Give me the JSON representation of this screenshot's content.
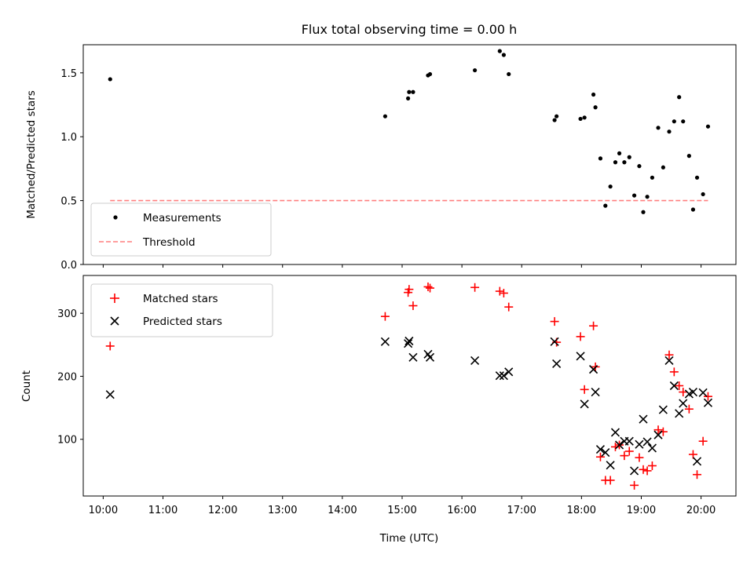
{
  "chart_data": [
    {
      "type": "scatter",
      "title": "Flux total observing time = 0.00 h",
      "xlabel": "",
      "ylabel": "Matched/Predicted stars",
      "ylim": [
        0,
        1.72
      ],
      "yticks": [
        0.0,
        0.5,
        1.0,
        1.5
      ],
      "ytick_labels": [
        "0.0",
        "0.5",
        "1.0",
        "1.5"
      ],
      "x_range_hours": [
        "09:40",
        "20:35"
      ],
      "legend": {
        "placement": "bottom-left",
        "entries": [
          "Measurements",
          "Threshold"
        ]
      },
      "colors": {
        "measurements": "#000000",
        "threshold": "#ff7f7f"
      },
      "series": [
        {
          "name": "Measurements",
          "marker": "dot",
          "points": [
            [
              "10:07",
              1.45
            ],
            [
              "14:43",
              1.16
            ],
            [
              "15:06",
              1.3
            ],
            [
              "15:07",
              1.35
            ],
            [
              "15:11",
              1.35
            ],
            [
              "15:26",
              1.48
            ],
            [
              "15:28",
              1.49
            ],
            [
              "16:13",
              1.52
            ],
            [
              "16:38",
              1.67
            ],
            [
              "16:42",
              1.64
            ],
            [
              "16:47",
              1.49
            ],
            [
              "17:33",
              1.13
            ],
            [
              "17:35",
              1.16
            ],
            [
              "17:59",
              1.14
            ],
            [
              "18:03",
              1.15
            ],
            [
              "18:12",
              1.33
            ],
            [
              "18:14",
              1.23
            ],
            [
              "18:19",
              0.83
            ],
            [
              "18:24",
              0.46
            ],
            [
              "18:29",
              0.61
            ],
            [
              "18:34",
              0.8
            ],
            [
              "18:38",
              0.87
            ],
            [
              "18:43",
              0.8
            ],
            [
              "18:48",
              0.84
            ],
            [
              "18:53",
              0.54
            ],
            [
              "18:58",
              0.77
            ],
            [
              "19:02",
              0.41
            ],
            [
              "19:06",
              0.53
            ],
            [
              "19:11",
              0.68
            ],
            [
              "19:17",
              1.07
            ],
            [
              "19:22",
              0.76
            ],
            [
              "19:28",
              1.04
            ],
            [
              "19:33",
              1.12
            ],
            [
              "19:38",
              1.31
            ],
            [
              "19:42",
              1.12
            ],
            [
              "19:48",
              0.85
            ],
            [
              "19:52",
              0.43
            ],
            [
              "19:56",
              0.68
            ],
            [
              "20:02",
              0.55
            ],
            [
              "20:07",
              1.08
            ]
          ]
        },
        {
          "name": "Threshold",
          "marker": "dashed-line",
          "points": [
            [
              "10:07",
              0.5
            ],
            [
              "20:07",
              0.5
            ]
          ]
        }
      ]
    },
    {
      "type": "scatter",
      "title": "",
      "xlabel": "Time (UTC)",
      "ylabel": "Count",
      "ylim": [
        10,
        360
      ],
      "yticks": [
        100,
        200,
        300
      ],
      "ytick_labels": [
        "100",
        "200",
        "300"
      ],
      "xticks": [
        "10:00",
        "11:00",
        "12:00",
        "13:00",
        "14:00",
        "15:00",
        "16:00",
        "17:00",
        "18:00",
        "19:00",
        "20:00"
      ],
      "x_range_hours": [
        "09:40",
        "20:35"
      ],
      "legend": {
        "placement": "top-left",
        "entries": [
          "Matched stars",
          "Predicted stars"
        ]
      },
      "colors": {
        "matched": "#ff0000",
        "predicted": "#000000"
      },
      "series": [
        {
          "name": "Matched stars",
          "marker": "plus",
          "points": [
            [
              "10:07",
              248
            ],
            [
              "14:43",
              295
            ],
            [
              "15:06",
              333
            ],
            [
              "15:07",
              338
            ],
            [
              "15:11",
              312
            ],
            [
              "15:26",
              342
            ],
            [
              "15:28",
              340
            ],
            [
              "16:13",
              341
            ],
            [
              "16:38",
              335
            ],
            [
              "16:42",
              332
            ],
            [
              "16:47",
              310
            ],
            [
              "17:33",
              287
            ],
            [
              "17:35",
              254
            ],
            [
              "17:59",
              263
            ],
            [
              "18:03",
              179
            ],
            [
              "18:12",
              280
            ],
            [
              "18:14",
              215
            ],
            [
              "18:19",
              72
            ],
            [
              "18:24",
              35
            ],
            [
              "18:29",
              35
            ],
            [
              "18:34",
              88
            ],
            [
              "18:38",
              91
            ],
            [
              "18:43",
              74
            ],
            [
              "18:48",
              81
            ],
            [
              "18:53",
              27
            ],
            [
              "18:58",
              71
            ],
            [
              "19:02",
              52
            ],
            [
              "19:06",
              50
            ],
            [
              "19:11",
              58
            ],
            [
              "19:17",
              115
            ],
            [
              "19:22",
              112
            ],
            [
              "19:28",
              234
            ],
            [
              "19:33",
              207
            ],
            [
              "19:38",
              185
            ],
            [
              "19:42",
              175
            ],
            [
              "19:48",
              148
            ],
            [
              "19:52",
              76
            ],
            [
              "19:56",
              44
            ],
            [
              "20:02",
              97
            ],
            [
              "20:07",
              168
            ]
          ]
        },
        {
          "name": "Predicted stars",
          "marker": "x",
          "points": [
            [
              "10:07",
              171
            ],
            [
              "14:43",
              255
            ],
            [
              "15:06",
              252
            ],
            [
              "15:07",
              256
            ],
            [
              "15:11",
              230
            ],
            [
              "15:26",
              235
            ],
            [
              "15:28",
              230
            ],
            [
              "16:13",
              225
            ],
            [
              "16:38",
              201
            ],
            [
              "16:42",
              201
            ],
            [
              "16:47",
              207
            ],
            [
              "17:33",
              255
            ],
            [
              "17:35",
              220
            ],
            [
              "17:59",
              232
            ],
            [
              "18:03",
              156
            ],
            [
              "18:12",
              211
            ],
            [
              "18:14",
              175
            ],
            [
              "18:19",
              84
            ],
            [
              "18:24",
              79
            ],
            [
              "18:29",
              59
            ],
            [
              "18:34",
              111
            ],
            [
              "18:38",
              91
            ],
            [
              "18:43",
              97
            ],
            [
              "18:48",
              97
            ],
            [
              "18:53",
              50
            ],
            [
              "18:58",
              92
            ],
            [
              "19:02",
              132
            ],
            [
              "19:06",
              96
            ],
            [
              "19:11",
              86
            ],
            [
              "19:17",
              107
            ],
            [
              "19:22",
              147
            ],
            [
              "19:28",
              225
            ],
            [
              "19:33",
              185
            ],
            [
              "19:38",
              141
            ],
            [
              "19:42",
              157
            ],
            [
              "19:48",
              172
            ],
            [
              "19:52",
              175
            ],
            [
              "19:56",
              65
            ],
            [
              "20:02",
              174
            ],
            [
              "20:07",
              158
            ]
          ]
        }
      ]
    }
  ]
}
